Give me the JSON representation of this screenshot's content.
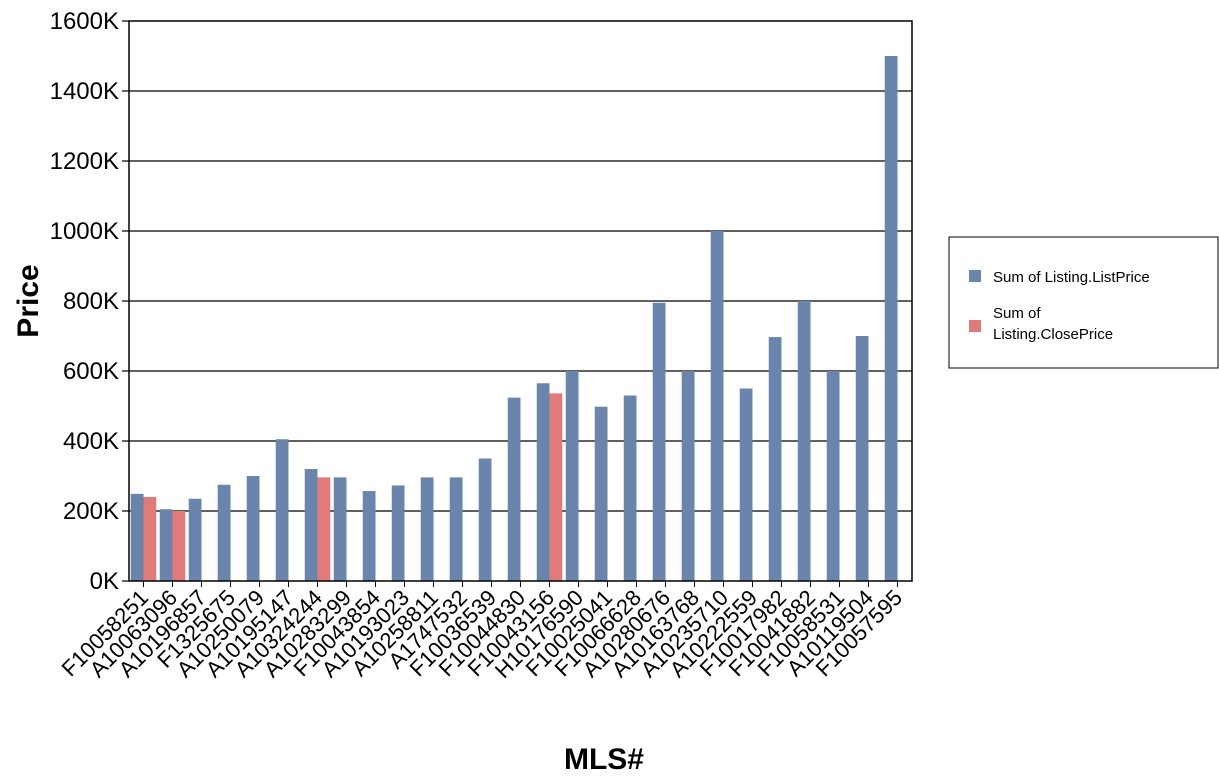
{
  "chart_data": {
    "type": "bar",
    "title": "",
    "xlabel": "MLS#",
    "ylabel": "Price",
    "ylim": [
      0,
      1600000
    ],
    "yticks": [
      "0K",
      "200K",
      "400K",
      "600K",
      "800K",
      "1000K",
      "1200K",
      "1400K",
      "1600K"
    ],
    "grid": true,
    "legend_position": "right",
    "categories": [
      "F10058251",
      "A10063096",
      "A10196857",
      "F1325675",
      "A10250079",
      "A10195147",
      "A10324244",
      "A10283299",
      "F10043854",
      "A10193023",
      "A10258811",
      "A1747532",
      "F10036539",
      "F10044830",
      "F10043156",
      "H10176590",
      "F10025041",
      "F10066628",
      "A10280676",
      "A10163768",
      "A10235710",
      "A10222559",
      "F10017982",
      "F10041882",
      "F10058531",
      "A10119504",
      "F10057595"
    ],
    "series": [
      {
        "name": "Sum of Listing.ListPrice",
        "color": "#6a84ac",
        "values": [
          249000,
          205000,
          235000,
          275000,
          300000,
          405000,
          320000,
          296000,
          257000,
          273000,
          296000,
          296000,
          350000,
          524000,
          565000,
          600000,
          498000,
          530000,
          795000,
          600000,
          1000000,
          550000,
          697000,
          800000,
          600000,
          700000,
          1500000
        ]
      },
      {
        "name": "Sum of Listing.ClosePrice",
        "color": "#e07b7a",
        "values": [
          240000,
          200000,
          null,
          null,
          null,
          null,
          296000,
          null,
          null,
          null,
          null,
          null,
          null,
          null,
          536000,
          null,
          null,
          null,
          null,
          null,
          null,
          null,
          null,
          null,
          null,
          null,
          null
        ]
      }
    ]
  }
}
